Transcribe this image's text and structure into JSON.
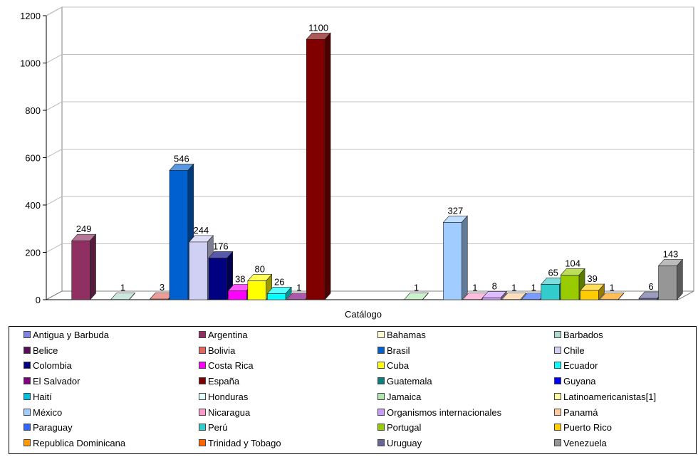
{
  "chart_data": {
    "type": "bar",
    "xlabel": "Catálogo",
    "ylim": [
      0,
      1200
    ],
    "yticks": [
      0,
      200,
      400,
      600,
      800,
      1000,
      1200
    ],
    "grid": true,
    "legend_position": "bottom",
    "series": [
      {
        "name": "Antigua y Barbuda",
        "value": 0,
        "color": "#7f86e0"
      },
      {
        "name": "Argentina",
        "value": 249,
        "color": "#8f2f62"
      },
      {
        "name": "Bahamas",
        "value": 0,
        "color": "#fcfcd0"
      },
      {
        "name": "Barbados",
        "value": 1,
        "color": "#b0d8d0"
      },
      {
        "name": "Belice",
        "value": 0,
        "color": "#5a0e5a"
      },
      {
        "name": "Bolivia",
        "value": 3,
        "color": "#e06860"
      },
      {
        "name": "Brasil",
        "value": 546,
        "color": "#0060d0"
      },
      {
        "name": "Chile",
        "value": 244,
        "color": "#d0d0f4"
      },
      {
        "name": "Colombia",
        "value": 176,
        "color": "#000080"
      },
      {
        "name": "Costa Rica",
        "value": 38,
        "color": "#ff00ff"
      },
      {
        "name": "Cuba",
        "value": 80,
        "color": "#ffff00"
      },
      {
        "name": "Ecuador",
        "value": 26,
        "color": "#00ffff"
      },
      {
        "name": "El Salvador",
        "value": 1,
        "color": "#800080"
      },
      {
        "name": "España",
        "value": 1100,
        "color": "#800000"
      },
      {
        "name": "Guatemala",
        "value": 0,
        "color": "#008080"
      },
      {
        "name": "Guyana",
        "value": 0,
        "color": "#0000ff"
      },
      {
        "name": "Haití",
        "value": 0,
        "color": "#00c0e0"
      },
      {
        "name": "Honduras",
        "value": 0,
        "color": "#e0ffff"
      },
      {
        "name": "Jamaica",
        "value": 1,
        "color": "#b0e8b0"
      },
      {
        "name": "Latinoamericanistas[1]",
        "value": 0,
        "color": "#ffffa0"
      },
      {
        "name": "México",
        "value": 327,
        "color": "#a0ccff"
      },
      {
        "name": "Nicaragua",
        "value": 1,
        "color": "#ff99cc"
      },
      {
        "name": "Organismos internacionales",
        "value": 8,
        "color": "#cc99ff"
      },
      {
        "name": "Panamá",
        "value": 1,
        "color": "#ffcc99"
      },
      {
        "name": "Paraguay",
        "value": 1,
        "color": "#3366ff"
      },
      {
        "name": "Perú",
        "value": 65,
        "color": "#33cccc"
      },
      {
        "name": "Portugal",
        "value": 104,
        "color": "#99cc00"
      },
      {
        "name": "Puerto Rico",
        "value": 39,
        "color": "#ffcc00"
      },
      {
        "name": "Republica Dominicana",
        "value": 1,
        "color": "#ff9900"
      },
      {
        "name": "Trinidad y Tobago",
        "value": 0,
        "color": "#ff6600"
      },
      {
        "name": "Uruguay",
        "value": 6,
        "color": "#666699"
      },
      {
        "name": "Venezuela",
        "value": 143,
        "color": "#969696"
      }
    ]
  }
}
